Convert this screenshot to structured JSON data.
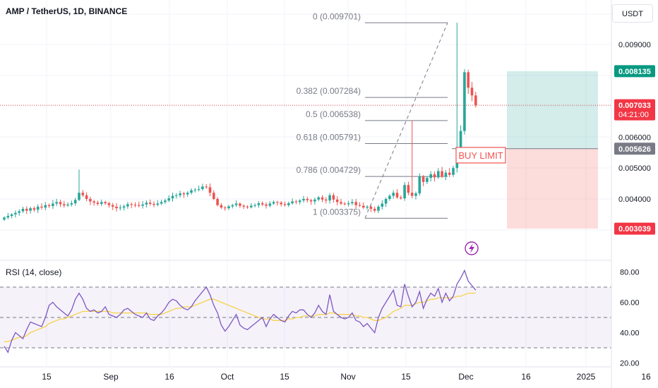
{
  "header": {
    "symbol_title": "AMP / TetherUS, 1D, BINANCE",
    "currency": "USDT"
  },
  "rsi": {
    "title": "RSI (14, close)",
    "levels": {
      "upper": 70,
      "middle": 50,
      "lower": 30
    },
    "axis_labels": [
      "80.00",
      "60.00",
      "40.00",
      "20.00"
    ],
    "line_color": "#7e57c2",
    "ma_color": "#f7d34a",
    "values": [
      31,
      27,
      35,
      40,
      38,
      36,
      42,
      47,
      46,
      45,
      44,
      50,
      58,
      60,
      57,
      55,
      53,
      51,
      55,
      62,
      66,
      62,
      56,
      54,
      55,
      53,
      54,
      57,
      52,
      51,
      50,
      52,
      55,
      56,
      54,
      52,
      51,
      50,
      53,
      49,
      48,
      51,
      53,
      56,
      60,
      62,
      61,
      58,
      56,
      55,
      57,
      61,
      64,
      67,
      70,
      65,
      58,
      53,
      45,
      41,
      44,
      48,
      52,
      45,
      43,
      42,
      44,
      46,
      48,
      50,
      44,
      49,
      52,
      50,
      48,
      47,
      51,
      54,
      53,
      55,
      55,
      52,
      50,
      53,
      58,
      54,
      52,
      65,
      54,
      52,
      50,
      49,
      50,
      53,
      48,
      47,
      44,
      46,
      43,
      40,
      50,
      56,
      60,
      64,
      68,
      58,
      57,
      72,
      64,
      57,
      60,
      67,
      56,
      62,
      66,
      64,
      69,
      60,
      66,
      61,
      64,
      72,
      76,
      81,
      74,
      71,
      68
    ],
    "ma": [
      34,
      34,
      35,
      36,
      37,
      37,
      38,
      40,
      41,
      42,
      43,
      44,
      46,
      47,
      48,
      49,
      49,
      50,
      51,
      52,
      53,
      54,
      54,
      54,
      54,
      54,
      54,
      54,
      54,
      53,
      53,
      53,
      53,
      53,
      53,
      53,
      53,
      53,
      53,
      52,
      52,
      52,
      52,
      53,
      54,
      55,
      56,
      56,
      57,
      57,
      57,
      58,
      59,
      60,
      61,
      62,
      62,
      61,
      60,
      59,
      58,
      57,
      56,
      55,
      54,
      53,
      52,
      51,
      50,
      49,
      49,
      49,
      48,
      48,
      48,
      48,
      49,
      49,
      50,
      50,
      51,
      51,
      51,
      51,
      52,
      52,
      52,
      53,
      53,
      52,
      52,
      52,
      52,
      52,
      51,
      51,
      50,
      50,
      49,
      48,
      48,
      49,
      50,
      52,
      54,
      55,
      56,
      58,
      58,
      58,
      59,
      60,
      60,
      61,
      62,
      62,
      63,
      63,
      63,
      63,
      63,
      64,
      64,
      65,
      66,
      66,
      66
    ]
  },
  "chart_data": {
    "type": "candlestick",
    "title": "AMP / TetherUS, 1D, BINANCE",
    "x_tick_labels": [
      "15",
      "Sep",
      "16",
      "Oct",
      "15",
      "Nov",
      "15",
      "Dec",
      "16",
      "2025",
      "16"
    ],
    "y_axis_labels": [
      "0.009000",
      "0.006000",
      "0.005000",
      "0.004000"
    ],
    "ylim": [
      0.0027,
      0.0102
    ],
    "up_color": "#26a69a",
    "down_color": "#ef5350",
    "current_price": {
      "label": "0.007033",
      "countdown": "04:21:00",
      "value": 0.007033
    },
    "fibonacci": {
      "levels": [
        {
          "label": "0 (0.009701)",
          "value": 0.009701
        },
        {
          "label": "0.382 (0.007284)",
          "value": 0.007284
        },
        {
          "label": "0.5 (0.006538)",
          "value": 0.006538
        },
        {
          "label": "0.618 (0.005791)",
          "value": 0.005791
        },
        {
          "label": "0.786 (0.004729)",
          "value": 0.004729
        },
        {
          "label": "1 (0.003375)",
          "value": 0.003375
        }
      ]
    },
    "position": {
      "entry_label": "BUY LIMIT",
      "take_profit": {
        "label": "0.008135",
        "value": 0.008135
      },
      "entry": {
        "label": "0.005626",
        "value": 0.005626
      },
      "stop_loss": {
        "label": "0.003039",
        "value": 0.003039
      },
      "profit_color": "#26a69a",
      "loss_color": "#ef5350"
    },
    "closes": [
      0.0034,
      0.00345,
      0.0035,
      0.00355,
      0.0036,
      0.00368,
      0.00362,
      0.0037,
      0.00365,
      0.00375,
      0.00372,
      0.0038,
      0.00377,
      0.00385,
      0.0039,
      0.00383,
      0.00379,
      0.00382,
      0.00386,
      0.00397,
      0.0042,
      0.00412,
      0.004,
      0.00392,
      0.00388,
      0.00384,
      0.0039,
      0.00386,
      0.0038,
      0.00375,
      0.0037,
      0.00372,
      0.00376,
      0.00383,
      0.00381,
      0.0038,
      0.00378,
      0.00382,
      0.00388,
      0.00384,
      0.00381,
      0.00385,
      0.0039,
      0.00395,
      0.00402,
      0.0041,
      0.00412,
      0.00418,
      0.00415,
      0.0042,
      0.00428,
      0.0043,
      0.00432,
      0.0044,
      0.00438,
      0.0042,
      0.004,
      0.0038,
      0.00372,
      0.0037,
      0.00376,
      0.0038,
      0.00385,
      0.00378,
      0.00375,
      0.00373,
      0.00378,
      0.0038,
      0.00386,
      0.00382,
      0.00378,
      0.00385,
      0.0039,
      0.00388,
      0.00383,
      0.0038,
      0.00386,
      0.00392,
      0.0039,
      0.00395,
      0.004,
      0.00396,
      0.00392,
      0.00398,
      0.00405,
      0.00398,
      0.00395,
      0.00412,
      0.00398,
      0.0039,
      0.00385,
      0.00383,
      0.00386,
      0.0039,
      0.0038,
      0.00378,
      0.00372,
      0.00375,
      0.00368,
      0.00362,
      0.00375,
      0.00385,
      0.004,
      0.0041,
      0.0042,
      0.00405,
      0.00402,
      0.00445,
      0.0042,
      0.0041,
      0.00418,
      0.00472,
      0.00455,
      0.00468,
      0.0048,
      0.0047,
      0.0049,
      0.00472,
      0.00485,
      0.00478,
      0.005,
      0.0056,
      0.0062,
      0.0081,
      0.0076,
      0.00735,
      0.00703
    ]
  }
}
